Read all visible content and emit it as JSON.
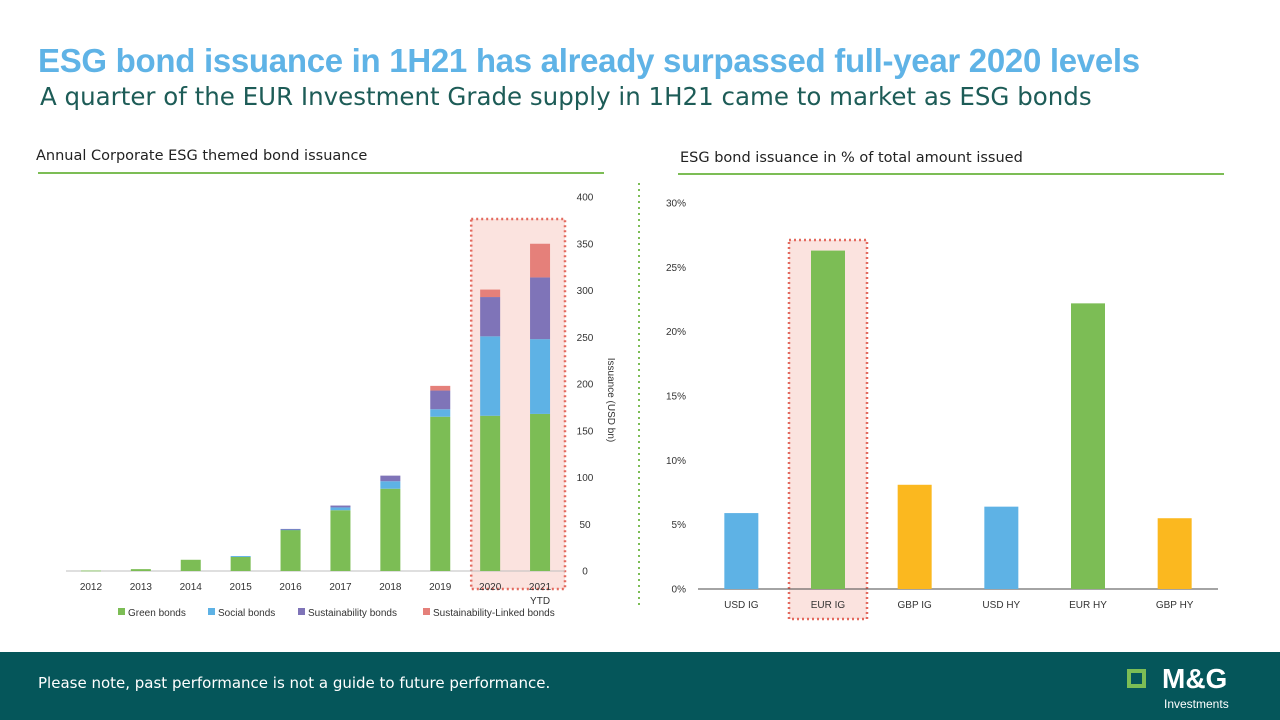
{
  "header": {
    "title": "ESG bond issuance in 1H21 has already surpassed full-year 2020 levels",
    "subtitle": "A quarter of the EUR Investment Grade supply in 1H21 came to market as ESG bonds"
  },
  "left_panel": {
    "title": "Annual Corporate ESG themed bond issuance"
  },
  "right_panel": {
    "title": "ESG bond issuance in % of total amount issued"
  },
  "footer": {
    "note": "Please note, past performance is not a guide to future performance.",
    "logo_text": "M&G",
    "logo_sub": "Investments"
  },
  "colors": {
    "green": "#7cbd55",
    "blue": "#5eb2e5",
    "purple": "#7f74b8",
    "red": "#e5807a",
    "amber": "#fbb81f",
    "highlight_fill": "#fbe3df",
    "highlight_border": "#e36a5f",
    "footer_bg": "#05565a"
  },
  "chart_data": [
    {
      "type": "bar",
      "stacked": true,
      "title": "Annual Corporate ESG themed bond issuance",
      "ylabel": "Issuance (USD bn)",
      "y_axis_side": "right",
      "ylim": [
        0,
        400
      ],
      "yticks": [
        "0",
        "50",
        "100",
        "150",
        "200",
        "250",
        "300",
        "350",
        "400"
      ],
      "categories": [
        "2012",
        "2013",
        "2014",
        "2015",
        "2016",
        "2017",
        "2018",
        "2019",
        "2020",
        "2021"
      ],
      "category_sublabels": [
        "",
        "",
        "",
        "",
        "",
        "",
        "",
        "",
        "",
        "YTD"
      ],
      "highlighted_categories": [
        "2020",
        "2021"
      ],
      "legend_position": "bottom",
      "series": [
        {
          "name": "Green bonds",
          "color": "#7cbd55",
          "values": [
            0.5,
            2,
            12,
            15,
            44,
            65,
            88,
            165,
            166,
            168
          ]
        },
        {
          "name": "Social bonds",
          "color": "#5eb2e5",
          "values": [
            0,
            0,
            0,
            1,
            0.5,
            3,
            8,
            8,
            85,
            80
          ]
        },
        {
          "name": "Sustainability bonds",
          "color": "#7f74b8",
          "values": [
            0,
            0,
            0,
            0,
            0.5,
            2,
            6,
            20,
            42,
            66
          ]
        },
        {
          "name": "Sustainability-Linked bonds",
          "color": "#e5807a",
          "values": [
            0,
            0,
            0,
            0,
            0,
            0,
            0,
            5,
            8,
            36
          ]
        }
      ]
    },
    {
      "type": "bar",
      "title": "ESG bond issuance in % of total amount issued",
      "ylim": [
        0,
        30
      ],
      "yticks": [
        "0%",
        "5%",
        "10%",
        "15%",
        "20%",
        "25%",
        "30%"
      ],
      "categories": [
        "USD IG",
        "EUR IG",
        "GBP IG",
        "USD HY",
        "EUR HY",
        "GBP HY"
      ],
      "values": [
        5.9,
        26.3,
        8.1,
        6.4,
        22.2,
        5.5
      ],
      "unit": "%",
      "bar_colors": [
        "#5eb2e5",
        "#7cbd55",
        "#fbb81f",
        "#5eb2e5",
        "#7cbd55",
        "#fbb81f"
      ],
      "highlighted_categories": [
        "EUR IG"
      ],
      "grid": false
    }
  ]
}
